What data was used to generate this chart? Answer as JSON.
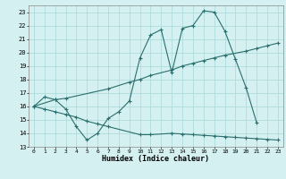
{
  "xlabel": "Humidex (Indice chaleur)",
  "background_color": "#d4f0f0",
  "grid_color": "#a8d8d8",
  "line_color": "#2a6e6e",
  "xlim": [
    -0.5,
    23.5
  ],
  "ylim": [
    13,
    23.5
  ],
  "yticks": [
    13,
    14,
    15,
    16,
    17,
    18,
    19,
    20,
    21,
    22,
    23
  ],
  "xticks": [
    0,
    1,
    2,
    3,
    4,
    5,
    6,
    7,
    8,
    9,
    10,
    11,
    12,
    13,
    14,
    15,
    16,
    17,
    18,
    19,
    20,
    21,
    22,
    23
  ],
  "line1_x": [
    0,
    1,
    2,
    3,
    4,
    5,
    6,
    7,
    8,
    9,
    10,
    11,
    12,
    13,
    14,
    15,
    16,
    17,
    18,
    19,
    20,
    21
  ],
  "line1_y": [
    16.0,
    16.7,
    16.5,
    15.8,
    14.5,
    13.5,
    14.0,
    15.1,
    15.6,
    16.4,
    19.6,
    21.3,
    21.7,
    18.5,
    21.8,
    22.0,
    23.1,
    23.0,
    21.6,
    19.5,
    17.4,
    14.8
  ],
  "line2_x": [
    0,
    2,
    3,
    7,
    9,
    10,
    11,
    13,
    14,
    15,
    16,
    17,
    18,
    20,
    21,
    22,
    23
  ],
  "line2_y": [
    16.0,
    16.5,
    16.6,
    17.3,
    17.8,
    18.0,
    18.3,
    18.7,
    19.0,
    19.2,
    19.4,
    19.6,
    19.8,
    20.1,
    20.3,
    20.5,
    20.7
  ],
  "line3_x": [
    0,
    1,
    2,
    3,
    4,
    5,
    6,
    7,
    10,
    11,
    13,
    14,
    15,
    16,
    17,
    18,
    19,
    20,
    21,
    22,
    23
  ],
  "line3_y": [
    16.0,
    15.8,
    15.6,
    15.4,
    15.2,
    14.9,
    14.7,
    14.5,
    13.9,
    13.9,
    14.0,
    13.95,
    13.9,
    13.85,
    13.8,
    13.75,
    13.7,
    13.65,
    13.6,
    13.55,
    13.5
  ]
}
